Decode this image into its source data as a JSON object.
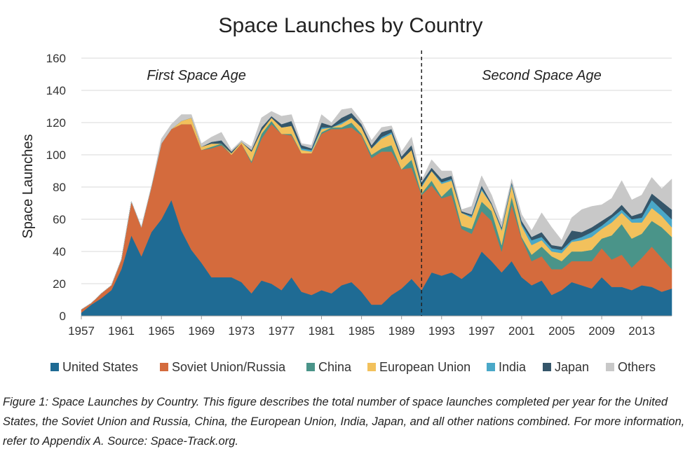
{
  "caption": "Figure 1: Space Launches by Country. This figure describes the total number of space launches completed per year for the United States, the Soviet Union and Russia, China, the European Union, India, Japan, and all other nations combined. For more information, refer to Appendix A. Source: Space-Track.org.",
  "chart_data": {
    "type": "area",
    "title": "Space Launches by Country",
    "xlabel": "",
    "ylabel": "Space Launches",
    "xlim": [
      1957,
      2016
    ],
    "ylim": [
      0,
      160
    ],
    "y_ticks": [
      0,
      20,
      40,
      60,
      80,
      100,
      120,
      140,
      160
    ],
    "x_ticks": [
      1957,
      1961,
      1965,
      1969,
      1973,
      1977,
      1981,
      1985,
      1989,
      1993,
      1997,
      2001,
      2005,
      2009,
      2013
    ],
    "grid": "horizontal",
    "legend_position": "bottom",
    "stacked": true,
    "divider_year": 1991,
    "annotations": [
      "First Space Age",
      "Second Space Age"
    ],
    "x": [
      1957,
      1958,
      1959,
      1960,
      1961,
      1962,
      1963,
      1964,
      1965,
      1966,
      1967,
      1968,
      1969,
      1970,
      1971,
      1972,
      1973,
      1974,
      1975,
      1976,
      1977,
      1978,
      1979,
      1980,
      1981,
      1982,
      1983,
      1984,
      1985,
      1986,
      1987,
      1988,
      1989,
      1990,
      1991,
      1992,
      1993,
      1994,
      1995,
      1996,
      1997,
      1998,
      1999,
      2000,
      2001,
      2002,
      2003,
      2004,
      2005,
      2006,
      2007,
      2008,
      2009,
      2010,
      2011,
      2012,
      2013,
      2014,
      2015,
      2016
    ],
    "series": [
      {
        "name": "United States",
        "color": "#1f6b94",
        "values": [
          2,
          7,
          11,
          16,
          29,
          50,
          37,
          52,
          60,
          72,
          53,
          41,
          33,
          24,
          24,
          24,
          21,
          14,
          22,
          20,
          16,
          24,
          15,
          13,
          16,
          14,
          19,
          21,
          15,
          7,
          7,
          13,
          17,
          23,
          16,
          27,
          25,
          27,
          23,
          28,
          40,
          34,
          27,
          34,
          24,
          19,
          22,
          13,
          16,
          21,
          19,
          17,
          24,
          18,
          18,
          16,
          19,
          18,
          15,
          17
        ]
      },
      {
        "name": "Soviet Union/Russia",
        "color": "#d46b3d",
        "values": [
          2,
          1,
          3,
          3,
          6,
          21,
          18,
          28,
          47,
          44,
          66,
          78,
          70,
          80,
          82,
          76,
          86,
          81,
          88,
          99,
          97,
          88,
          86,
          88,
          97,
          102,
          97,
          96,
          97,
          91,
          95,
          89,
          74,
          69,
          59,
          54,
          48,
          48,
          31,
          23,
          25,
          25,
          13,
          35,
          24,
          15,
          15,
          16,
          13,
          13,
          15,
          17,
          18,
          17,
          20,
          14,
          17,
          25,
          21,
          12
        ]
      },
      {
        "name": "China",
        "color": "#4a9489",
        "values": [
          0,
          0,
          0,
          0,
          0,
          0,
          0,
          0,
          0,
          0,
          0,
          0,
          0,
          1,
          1,
          0,
          0,
          1,
          3,
          2,
          0,
          1,
          0,
          0,
          1,
          1,
          1,
          3,
          1,
          2,
          2,
          4,
          0,
          5,
          1,
          3,
          1,
          5,
          2,
          3,
          6,
          6,
          4,
          5,
          1,
          4,
          6,
          8,
          5,
          6,
          6,
          7,
          6,
          15,
          19,
          18,
          15,
          16,
          19,
          20
        ]
      },
      {
        "name": "European Union",
        "color": "#f2c15c",
        "values": [
          0,
          0,
          0,
          0,
          0,
          0,
          0,
          0,
          0,
          0,
          2,
          4,
          2,
          2,
          0,
          1,
          1,
          6,
          2,
          2,
          4,
          5,
          2,
          1,
          2,
          0,
          2,
          3,
          4,
          4,
          6,
          7,
          6,
          6,
          4,
          6,
          8,
          4,
          8,
          7,
          7,
          4,
          9,
          7,
          7,
          6,
          4,
          3,
          5,
          6,
          7,
          8,
          6,
          8,
          7,
          10,
          7,
          8,
          7,
          6
        ]
      },
      {
        "name": "India",
        "color": "#4aa8c8",
        "values": [
          0,
          0,
          0,
          0,
          0,
          0,
          0,
          0,
          0,
          0,
          0,
          0,
          0,
          0,
          0,
          0,
          0,
          0,
          0,
          0,
          0,
          0,
          1,
          1,
          1,
          0,
          1,
          0,
          0,
          0,
          1,
          1,
          0,
          0,
          1,
          0,
          1,
          1,
          0,
          1,
          1,
          0,
          1,
          1,
          1,
          3,
          2,
          2,
          2,
          1,
          2,
          3,
          2,
          3,
          2,
          2,
          3,
          5,
          4,
          5
        ]
      },
      {
        "name": "Japan",
        "color": "#35566a",
        "values": [
          0,
          0,
          0,
          0,
          0,
          0,
          0,
          0,
          0,
          0,
          0,
          0,
          0,
          1,
          2,
          1,
          0,
          1,
          2,
          1,
          2,
          3,
          2,
          1,
          3,
          1,
          3,
          3,
          2,
          2,
          3,
          2,
          2,
          3,
          2,
          2,
          2,
          2,
          1,
          1,
          2,
          1,
          1,
          1,
          2,
          2,
          3,
          2,
          2,
          6,
          3,
          3,
          3,
          2,
          3,
          2,
          3,
          4,
          5,
          6
        ]
      },
      {
        "name": "Others",
        "color": "#c8c8c8",
        "values": [
          0,
          0,
          0,
          0,
          0,
          0,
          0,
          0,
          3,
          3,
          4,
          2,
          2,
          3,
          5,
          1,
          1,
          2,
          6,
          3,
          5,
          4,
          1,
          2,
          5,
          2,
          5,
          3,
          2,
          3,
          3,
          2,
          3,
          5,
          1,
          5,
          5,
          3,
          1,
          5,
          6,
          5,
          3,
          2,
          4,
          4,
          12,
          11,
          4,
          8,
          14,
          13,
          10,
          10,
          15,
          10,
          11,
          10,
          8,
          19
        ]
      }
    ]
  }
}
